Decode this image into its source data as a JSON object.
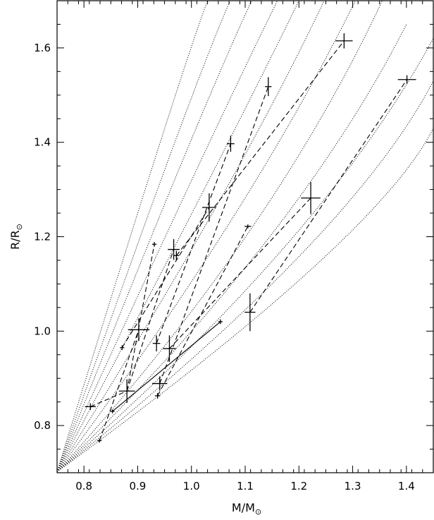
{
  "chart_data": {
    "type": "scatter",
    "xlabel": "M/M",
    "ylabel": "R/R",
    "solar_symbol": "⊙",
    "xlim": [
      0.75,
      1.45
    ],
    "ylim": [
      0.7,
      1.7
    ],
    "xticks": [
      0.8,
      0.9,
      1.0,
      1.1,
      1.2,
      1.3,
      1.4
    ],
    "xtick_labels": [
      "0.8",
      "0.9",
      "1.0",
      "1.1",
      "1.2",
      "1.3",
      "1.4"
    ],
    "yticks": [
      0.8,
      1.0,
      1.2,
      1.4,
      1.6
    ],
    "ytick_labels": [
      "0.8",
      "1.0",
      "1.2",
      "1.4",
      "1.6"
    ],
    "grid": false,
    "colors": {
      "ink": "#000000",
      "background": "#ffffff"
    },
    "points": [
      {
        "x": 0.812,
        "y": 0.84,
        "xerr": 0.01,
        "yerr": 0.007
      },
      {
        "x": 0.829,
        "y": 0.768,
        "xerr": 0.004,
        "yerr": 0.004
      },
      {
        "x": 0.853,
        "y": 0.83,
        "xerr": 0.004,
        "yerr": 0.004
      },
      {
        "x": 0.871,
        "y": 0.965,
        "xerr": 0.004,
        "yerr": 0.005
      },
      {
        "x": 0.88,
        "y": 0.873,
        "xerr": 0.015,
        "yerr": 0.025
      },
      {
        "x": 0.902,
        "y": 1.003,
        "xerr": 0.02,
        "yerr": 0.024
      },
      {
        "x": 0.931,
        "y": 1.184,
        "xerr": 0.004,
        "yerr": 0.005
      },
      {
        "x": 0.935,
        "y": 0.974,
        "xerr": 0.007,
        "yerr": 0.017
      },
      {
        "x": 0.937,
        "y": 0.863,
        "xerr": 0.005,
        "yerr": 0.006
      },
      {
        "x": 0.941,
        "y": 0.889,
        "xerr": 0.014,
        "yerr": 0.015
      },
      {
        "x": 0.959,
        "y": 0.963,
        "xerr": 0.012,
        "yerr": 0.028
      },
      {
        "x": 0.967,
        "y": 1.173,
        "xerr": 0.011,
        "yerr": 0.022
      },
      {
        "x": 0.972,
        "y": 1.16,
        "xerr": 0.005,
        "yerr": 0.01
      },
      {
        "x": 1.033,
        "y": 1.262,
        "xerr": 0.013,
        "yerr": 0.03
      },
      {
        "x": 1.054,
        "y": 1.02,
        "xerr": 0.004,
        "yerr": 0.005
      },
      {
        "x": 1.073,
        "y": 1.397,
        "xerr": 0.007,
        "yerr": 0.017
      },
      {
        "x": 1.105,
        "y": 1.222,
        "xerr": 0.006,
        "yerr": 0.004
      },
      {
        "x": 1.109,
        "y": 1.04,
        "xerr": 0.01,
        "yerr": 0.04
      },
      {
        "x": 1.143,
        "y": 1.518,
        "xerr": 0.006,
        "yerr": 0.02
      },
      {
        "x": 1.222,
        "y": 1.282,
        "xerr": 0.018,
        "yerr": 0.034
      },
      {
        "x": 1.284,
        "y": 1.615,
        "xerr": 0.016,
        "yerr": 0.016
      },
      {
        "x": 1.401,
        "y": 1.533,
        "xerr": 0.017,
        "yerr": 0.009
      }
    ],
    "binary_links": [
      {
        "style": "solid",
        "from": [
          0.853,
          0.83
        ],
        "to": [
          1.054,
          1.02
        ]
      },
      {
        "style": "dashed",
        "from": [
          0.812,
          0.84
        ],
        "to": [
          0.88,
          0.873
        ]
      },
      {
        "style": "dashed",
        "from": [
          0.88,
          0.873
        ],
        "to": [
          0.931,
          1.184
        ]
      },
      {
        "style": "dashed",
        "from": [
          0.871,
          0.965
        ],
        "to": [
          1.033,
          1.262
        ]
      },
      {
        "style": "dashed",
        "from": [
          0.829,
          0.768
        ],
        "to": [
          0.902,
          1.003
        ]
      },
      {
        "style": "dashed",
        "from": [
          0.88,
          0.873
        ],
        "to": [
          0.967,
          1.173
        ]
      },
      {
        "style": "dashed",
        "from": [
          0.935,
          0.974
        ],
        "to": [
          1.073,
          1.397
        ]
      },
      {
        "style": "dashed",
        "from": [
          0.941,
          0.889
        ],
        "to": [
          1.143,
          1.518
        ]
      },
      {
        "style": "dashed",
        "from": [
          0.937,
          0.863
        ],
        "to": [
          1.105,
          1.222
        ]
      },
      {
        "style": "dashed",
        "from": [
          0.959,
          0.963
        ],
        "to": [
          1.222,
          1.282
        ]
      },
      {
        "style": "dashed",
        "from": [
          0.972,
          1.16
        ],
        "to": [
          1.284,
          1.615
        ]
      },
      {
        "style": "dashed",
        "from": [
          1.109,
          1.04
        ],
        "to": [
          1.401,
          1.533
        ]
      }
    ],
    "isochrones": [
      [
        [
          0.75,
          0.702
        ],
        [
          0.98,
          1.55
        ],
        [
          1.03,
          1.7
        ]
      ],
      [
        [
          0.75,
          0.702
        ],
        [
          0.995,
          1.5
        ],
        [
          1.072,
          1.7
        ]
      ],
      [
        [
          0.75,
          0.702
        ],
        [
          1.01,
          1.45
        ],
        [
          1.112,
          1.7
        ]
      ],
      [
        [
          0.75,
          0.702
        ],
        [
          1.03,
          1.4
        ],
        [
          1.16,
          1.7
        ]
      ],
      [
        [
          0.75,
          0.702
        ],
        [
          1.05,
          1.35
        ],
        [
          1.2,
          1.7
        ]
      ],
      [
        [
          0.75,
          0.702
        ],
        [
          1.08,
          1.3
        ],
        [
          1.247,
          1.7
        ]
      ],
      [
        [
          0.75,
          0.702
        ],
        [
          1.11,
          1.25
        ],
        [
          1.305,
          1.7
        ]
      ],
      [
        [
          0.75,
          0.702
        ],
        [
          1.15,
          1.2
        ],
        [
          1.355,
          1.7
        ]
      ],
      [
        [
          0.75,
          0.702
        ],
        [
          1.2,
          1.2
        ],
        [
          1.4,
          1.65
        ]
      ],
      [
        [
          0.75,
          0.702
        ],
        [
          1.25,
          1.2
        ],
        [
          1.45,
          1.62
        ]
      ],
      [
        [
          0.75,
          0.702
        ],
        [
          1.3,
          1.2
        ],
        [
          1.45,
          1.53
        ]
      ],
      [
        [
          0.75,
          0.702
        ],
        [
          1.35,
          1.2
        ],
        [
          1.45,
          1.43
        ]
      ]
    ]
  }
}
